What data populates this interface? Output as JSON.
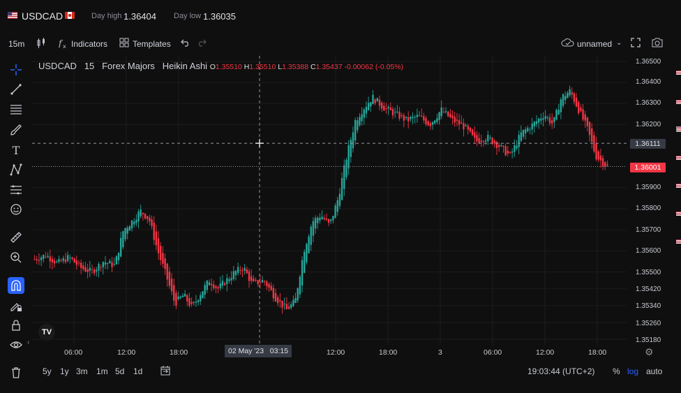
{
  "header": {
    "symbol": "USDCAD",
    "day_high_label": "Day high",
    "day_high_value": "1.36404",
    "day_low_label": "Day low",
    "day_low_value": "1.36035"
  },
  "toolbar": {
    "interval": "15m",
    "indicators_label": "Indicators",
    "templates_label": "Templates",
    "layout_name": "unnamed"
  },
  "legend": {
    "symbol": "USDCAD",
    "interval": "15",
    "exchange": "Forex Majors",
    "chart_type": "Heikin Ashi",
    "o_label": "O",
    "o_value": "1.35510",
    "h_label": "H",
    "h_value": "1.35510",
    "l_label": "L",
    "l_value": "1.35388",
    "c_label": "C",
    "c_value": "1.35437",
    "change": "-0.00062 (-0.05%)"
  },
  "price_axis": {
    "ticks": [
      "1.36500",
      "1.36400",
      "1.36300",
      "1.36200",
      "1.36111",
      "1.36001",
      "1.35900",
      "1.35800",
      "1.35700",
      "1.35600",
      "1.35500",
      "1.35420",
      "1.35340",
      "1.35260",
      "1.35180"
    ],
    "crosshair_price": "1.36111",
    "last_price": "1.36001"
  },
  "time_axis": {
    "ticks": [
      "06:00",
      "12:00",
      "18:00",
      "12:00",
      "18:00",
      "3",
      "06:00",
      "12:00",
      "18:00"
    ],
    "crosshair_time": "02 May '23   03:15"
  },
  "bottom": {
    "ranges": [
      "5y",
      "1y",
      "3m",
      "1m",
      "5d",
      "1d"
    ],
    "clock": "19:03:44 (UTC+2)",
    "percent_label": "%",
    "log_label": "log",
    "auto_label": "auto"
  },
  "colors": {
    "up": "#26a69a",
    "down": "#f23645",
    "accent": "#2962ff",
    "background": "#0f0f0f"
  },
  "chart_data": {
    "type": "candlestick",
    "style": "heikin-ashi",
    "symbol": "USDCAD",
    "interval": "15m",
    "ylim": [
      1.3518,
      1.365
    ],
    "yticks": [
      1.365,
      1.364,
      1.363,
      1.362,
      1.359,
      1.358,
      1.357,
      1.356,
      1.355,
      1.3542,
      1.3534,
      1.3526,
      1.3518
    ],
    "close_path": [
      {
        "t": 0,
        "v": 1.3556
      },
      {
        "t": 0.02,
        "v": 1.3558
      },
      {
        "t": 0.04,
        "v": 1.3554
      },
      {
        "t": 0.06,
        "v": 1.3557
      },
      {
        "t": 0.08,
        "v": 1.3552
      },
      {
        "t": 0.1,
        "v": 1.355
      },
      {
        "t": 0.12,
        "v": 1.3555
      },
      {
        "t": 0.14,
        "v": 1.3553
      },
      {
        "t": 0.155,
        "v": 1.357
      },
      {
        "t": 0.17,
        "v": 1.3574
      },
      {
        "t": 0.185,
        "v": 1.3579
      },
      {
        "t": 0.2,
        "v": 1.3575
      },
      {
        "t": 0.215,
        "v": 1.356
      },
      {
        "t": 0.23,
        "v": 1.3548
      },
      {
        "t": 0.245,
        "v": 1.3535
      },
      {
        "t": 0.26,
        "v": 1.3539
      },
      {
        "t": 0.275,
        "v": 1.3533
      },
      {
        "t": 0.29,
        "v": 1.354
      },
      {
        "t": 0.305,
        "v": 1.3546
      },
      {
        "t": 0.32,
        "v": 1.3542
      },
      {
        "t": 0.335,
        "v": 1.3546
      },
      {
        "t": 0.35,
        "v": 1.355
      },
      {
        "t": 0.365,
        "v": 1.3552
      },
      {
        "t": 0.38,
        "v": 1.3544
      },
      {
        "t": 0.4,
        "v": 1.3546
      },
      {
        "t": 0.42,
        "v": 1.3538
      },
      {
        "t": 0.44,
        "v": 1.3532
      },
      {
        "t": 0.455,
        "v": 1.3536
      },
      {
        "t": 0.47,
        "v": 1.356
      },
      {
        "t": 0.485,
        "v": 1.3574
      },
      {
        "t": 0.5,
        "v": 1.3577
      },
      {
        "t": 0.515,
        "v": 1.3572
      },
      {
        "t": 0.53,
        "v": 1.3585
      },
      {
        "t": 0.545,
        "v": 1.3605
      },
      {
        "t": 0.56,
        "v": 1.3622
      },
      {
        "t": 0.575,
        "v": 1.3628
      },
      {
        "t": 0.59,
        "v": 1.3633
      },
      {
        "t": 0.61,
        "v": 1.3628
      },
      {
        "t": 0.63,
        "v": 1.3625
      },
      {
        "t": 0.65,
        "v": 1.3622
      },
      {
        "t": 0.67,
        "v": 1.3624
      },
      {
        "t": 0.69,
        "v": 1.362
      },
      {
        "t": 0.71,
        "v": 1.3627
      },
      {
        "t": 0.73,
        "v": 1.3622
      },
      {
        "t": 0.75,
        "v": 1.3619
      },
      {
        "t": 0.77,
        "v": 1.3612
      },
      {
        "t": 0.79,
        "v": 1.3614
      },
      {
        "t": 0.81,
        "v": 1.361
      },
      {
        "t": 0.83,
        "v": 1.3605
      },
      {
        "t": 0.85,
        "v": 1.3616
      },
      {
        "t": 0.87,
        "v": 1.362
      },
      {
        "t": 0.89,
        "v": 1.3625
      },
      {
        "t": 0.905,
        "v": 1.362
      },
      {
        "t": 0.92,
        "v": 1.3633
      },
      {
        "t": 0.935,
        "v": 1.3636
      },
      {
        "t": 0.95,
        "v": 1.3627
      },
      {
        "t": 0.965,
        "v": 1.3618
      },
      {
        "t": 0.98,
        "v": 1.3605
      },
      {
        "t": 1.0,
        "v": 1.36
      }
    ],
    "crosshair_price": 1.36111,
    "last_price": 1.36001
  }
}
